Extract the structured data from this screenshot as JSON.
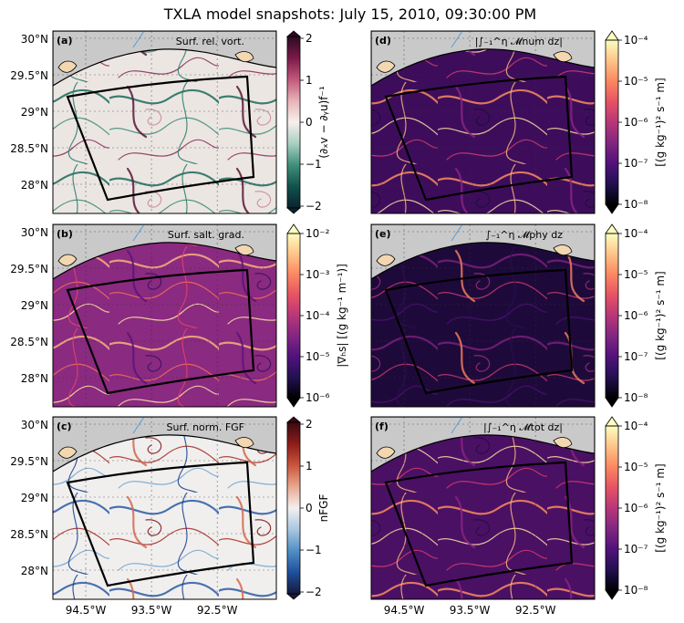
{
  "suptitle": "TXLA model snapshots: July 15, 2010, 09:30:00 PM",
  "lat_ticks": [
    "30°N",
    "29.5°N",
    "29°N",
    "28.5°N",
    "28°N"
  ],
  "lon_ticks": [
    "94.5°W",
    "93.5°W",
    "92.5°W"
  ],
  "panels": [
    {
      "id": "a",
      "tag": "(a)",
      "title": "Surf. rel. vort.",
      "cmap": "vort",
      "cbar_label": "(∂ₓv − ∂ᵧu)f⁻¹",
      "cbar_ticks": [
        "2",
        "1",
        "0",
        "−1",
        "−2"
      ],
      "cbar_log": false
    },
    {
      "id": "b",
      "tag": "(b)",
      "title": "Surf. salt. grad.",
      "cmap": "magma",
      "cbar_label": "|∇ₕs| [(g kg⁻¹ m⁻¹)]",
      "cbar_ticks": [
        "10⁻²",
        "10⁻³",
        "10⁻⁴",
        "10⁻⁵",
        "10⁻⁶"
      ],
      "cbar_log": true
    },
    {
      "id": "c",
      "tag": "(c)",
      "title": "Surf. norm. FGF",
      "cmap": "balance",
      "cbar_label": "nFGF",
      "cbar_ticks": [
        "2",
        "1",
        "0",
        "−1",
        "−2"
      ],
      "cbar_log": false
    },
    {
      "id": "d",
      "tag": "(d)",
      "title": "|∫₋₁^η 𝓜num dz|",
      "cmap": "magma",
      "cbar_label": "[(g kg⁻¹)² s⁻¹ m]",
      "cbar_ticks": [
        "10⁻⁴",
        "10⁻⁵",
        "10⁻⁶",
        "10⁻⁷",
        "10⁻⁸"
      ],
      "cbar_log": true
    },
    {
      "id": "e",
      "tag": "(e)",
      "title": "∫₋₁^η 𝓜phy dz",
      "cmap": "magma",
      "cbar_label": "[(g kg⁻¹)² s⁻¹ m]",
      "cbar_ticks": [
        "10⁻⁴",
        "10⁻⁵",
        "10⁻⁶",
        "10⁻⁷",
        "10⁻⁸"
      ],
      "cbar_log": true
    },
    {
      "id": "f",
      "tag": "(f)",
      "title": "|∫₋₁^η 𝓜tot dz|",
      "cmap": "magma",
      "cbar_label": "[(g kg⁻¹)² s⁻¹ m]",
      "cbar_ticks": [
        "10⁻⁴",
        "10⁻⁵",
        "10⁻⁶",
        "10⁻⁷",
        "10⁻⁸"
      ],
      "cbar_log": true
    }
  ],
  "chart_data": {
    "type": "heatmap",
    "title": "TXLA model snapshots: July 15, 2010, 09:30:00 PM",
    "layout": "3 rows × 2 columns of map panels",
    "lat_range": [
      27.6,
      30.1
    ],
    "lon_range": [
      -95.0,
      -91.6
    ],
    "lat_tick_values": [
      30.0,
      29.5,
      29.0,
      28.5,
      28.0
    ],
    "lon_tick_values": [
      -94.5,
      -93.5,
      -92.5
    ],
    "panels": [
      {
        "id": "a",
        "title": "Surf. rel. vort.",
        "colorbar_range": [
          -2,
          2
        ],
        "scale": "linear",
        "colormap": "green-white-red diverging"
      },
      {
        "id": "b",
        "title": "Surf. salt. grad.",
        "colorbar_range": [
          1e-06,
          0.01
        ],
        "scale": "log",
        "colormap": "magma"
      },
      {
        "id": "c",
        "title": "Surf. norm. FGF",
        "colorbar_range": [
          -2,
          2
        ],
        "scale": "linear",
        "colormap": "blue-white-red diverging"
      },
      {
        "id": "d",
        "title": "|∫ M_num dz|",
        "colorbar_range": [
          1e-08,
          0.0001
        ],
        "scale": "log",
        "colormap": "magma"
      },
      {
        "id": "e",
        "title": "∫ M_phy dz",
        "colorbar_range": [
          1e-08,
          0.0001
        ],
        "scale": "log",
        "colormap": "magma"
      },
      {
        "id": "f",
        "title": "|∫ M_tot dz|",
        "colorbar_range": [
          1e-08,
          0.0001
        ],
        "scale": "log",
        "colormap": "magma"
      }
    ],
    "land_color": "#c9c9c9",
    "analysis_box_color": "#000000"
  }
}
